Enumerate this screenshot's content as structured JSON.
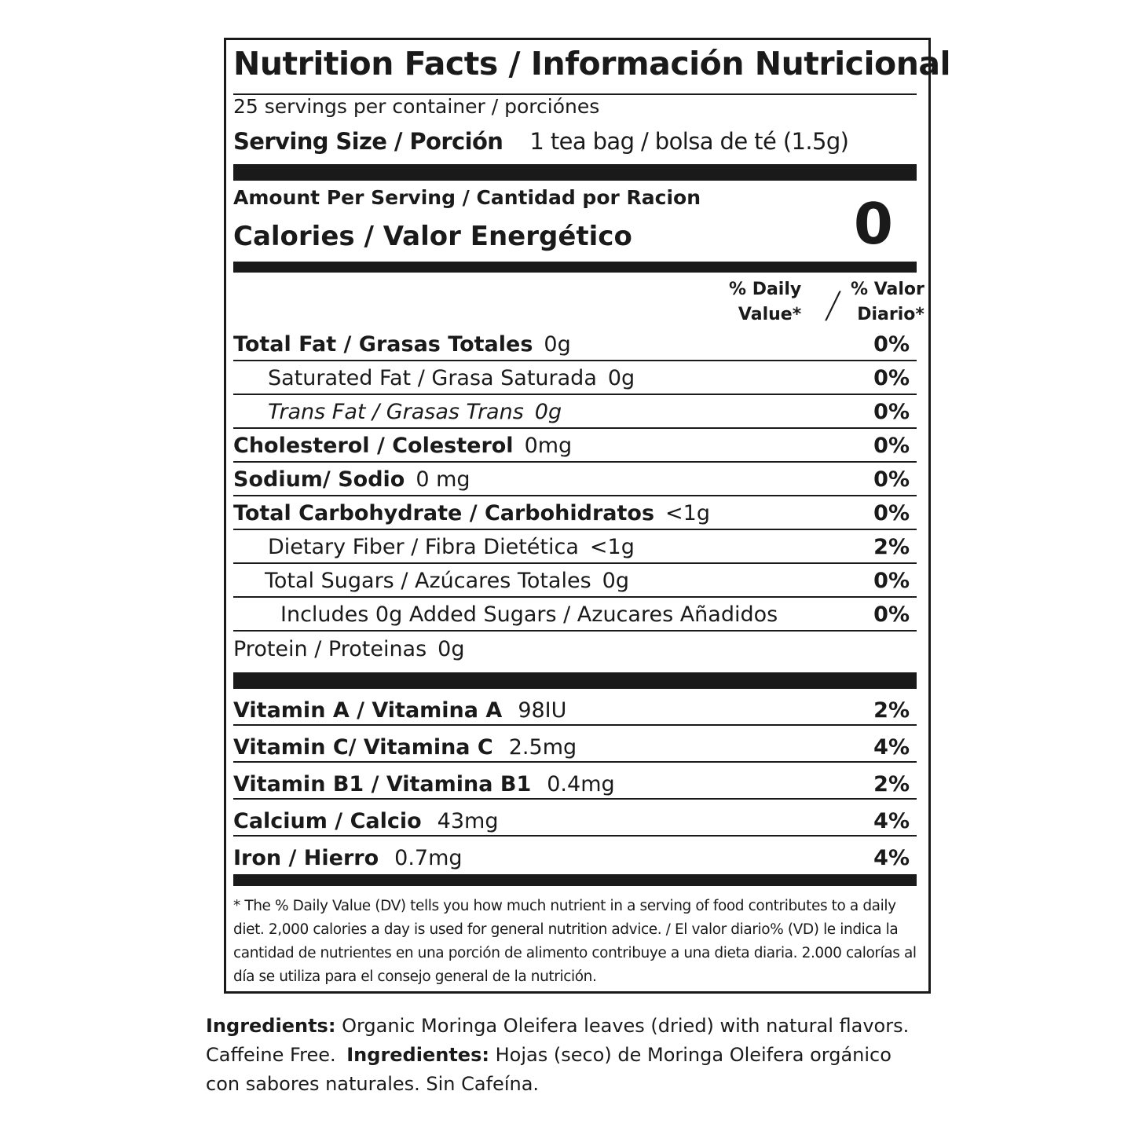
{
  "label": {
    "title": "Nutrition Facts / Información Nutricional",
    "servings": "25 servings per container / porciónes",
    "serving_size_label": "Serving Size / Porción",
    "serving_size_value": "1 tea bag / bolsa de té (1.5g)",
    "amount_per_serving": "Amount Per Serving / Cantidad por Racion",
    "calories_label": "Calories / Valor Energético",
    "calories_value": "0",
    "dv_header_en_1": "% Daily",
    "dv_header_en_2": "Value*",
    "dv_header_slash": "/",
    "dv_header_es_1": "% Valor",
    "dv_header_es_2": "Diario*",
    "nutrients": [
      {
        "name": "Total Fat / Grasas Totales",
        "value": "0g",
        "dv": "0%",
        "bold": true,
        "indent": 0
      },
      {
        "name": "Saturated Fat / Grasa Saturada",
        "value": "0g",
        "dv": "0%",
        "bold": false,
        "indent": 44
      },
      {
        "name": "Trans Fat / Grasas Trans",
        "value": "0g",
        "dv": "0%",
        "bold": false,
        "indent": 44,
        "italic": true
      },
      {
        "name": "Cholesterol / Colesterol",
        "value": "0mg",
        "dv": "0%",
        "bold": true,
        "indent": 0
      },
      {
        "name": "Sodium/ Sodio",
        "value": "0 mg",
        "dv": "0%",
        "bold": true,
        "indent": 0
      },
      {
        "name": "Total Carbohydrate / Carbohidratos",
        "value": "<1g",
        "dv": "0%",
        "bold": true,
        "indent": 0
      },
      {
        "name": "Dietary Fiber / Fibra Dietética",
        "value": "<1g",
        "dv": "2%",
        "bold": false,
        "indent": 44
      },
      {
        "name": "Total Sugars / Azúcares Totales",
        "value": "0g",
        "dv": "0%",
        "bold": false,
        "indent": 40
      },
      {
        "name": "Includes 0g Added Sugars / Azucares Añadidos",
        "value": "",
        "dv": "0%",
        "bold": false,
        "indent": 60
      },
      {
        "name": "Protein / Proteinas",
        "value": "0g",
        "dv": "",
        "bold": false,
        "indent": 0
      }
    ],
    "vitamins": [
      {
        "name": "Vitamin A / Vitamina A",
        "value": "98IU",
        "dv": "2%"
      },
      {
        "name": "Vitamin C/ Vitamina C",
        "value": "2.5mg",
        "dv": "4%"
      },
      {
        "name": "Vitamin B1 / Vitamina B1",
        "value": "0.4mg",
        "dv": "2%"
      },
      {
        "name": "Calcium / Calcio",
        "value": "43mg",
        "dv": "4%"
      },
      {
        "name": "Iron / Hierro",
        "value": "0.7mg",
        "dv": "4%"
      }
    ],
    "footnote": "* The % Daily Value (DV) tells you how much nutrient in a serving of food contributes to a daily diet. 2,000 calories a day is used for general nutrition advice. / El valor diario% (VD) le indica la cantidad de nutrientes en una porción de alimento contribuye a una dieta diaria. 2.000 calorías al día se utiliza para el consejo general de la nutrición."
  },
  "ingredients": {
    "en_label": "Ingredients:",
    "en_text": "Organic Moringa Oleifera leaves (dried) with natural flavors. Caffeine Free.",
    "es_label": "Ingredientes:",
    "es_text": "Hojas (seco) de Moringa Oleifera orgánico con sabores naturales. Sin Cafeína."
  }
}
